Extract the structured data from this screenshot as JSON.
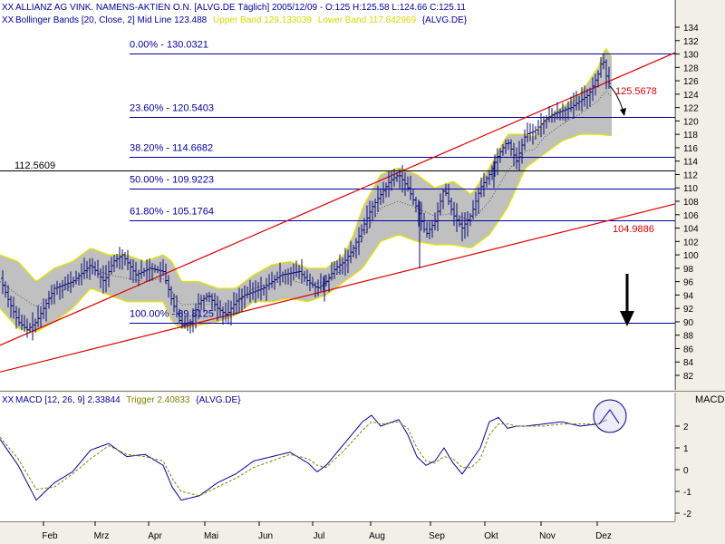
{
  "chart_data": [
    {
      "type": "candlestick",
      "title": "ALLIANZ AG VINK. NAMENS-AKTIEN O.N. [ALVG.DE  Täglich] 2005/12/09 - O:125 H:125.58 L:124.66 C:125.11",
      "indicator_label": "Bollinger Bands [20, Close, 2] Mid Line 123.488",
      "indicator_upper_label": "Upper Band 129.133039",
      "indicator_lower_label": "Lower Band 117.842969",
      "indicator_suffix": "{ALVG.DE}",
      "months": [
        "Feb",
        "Mrz",
        "Apr",
        "Mai",
        "Jun",
        "Jul",
        "Aug",
        "Sep",
        "Okt",
        "Nov",
        "Dez"
      ],
      "y_ticks": [
        82,
        84,
        86,
        88,
        90,
        92,
        94,
        96,
        98,
        100,
        102,
        104,
        106,
        108,
        110,
        112,
        114,
        116,
        118,
        120,
        122,
        124,
        126,
        128,
        130,
        132,
        134
      ],
      "ylim": [
        80.5,
        135.5
      ],
      "fib_levels": [
        {
          "label": "0.00% - 130.0321",
          "value": 130.0321
        },
        {
          "label": "23.60% - 120.5403",
          "value": 120.5403
        },
        {
          "label": "38.20% - 114.6682",
          "value": 114.6682
        },
        {
          "label": "50.00% - 109.9223",
          "value": 109.9223
        },
        {
          "label": "61.80% - 105.1764",
          "value": 105.1764
        },
        {
          "label": "100.00% - 89.8125",
          "value": 89.8125
        }
      ],
      "horizontal_line": {
        "label": "112.5609",
        "value": 112.5609
      },
      "channel_labels": [
        {
          "label": "125.5678",
          "value": 125.5678
        },
        {
          "label": "104.9886",
          "value": 104.9886
        }
      ],
      "price_keypoints": [
        [
          0,
          96.5
        ],
        [
          10,
          93
        ],
        [
          20,
          90
        ],
        [
          30,
          88.8
        ],
        [
          40,
          90
        ],
        [
          60,
          95
        ],
        [
          80,
          96
        ],
        [
          100,
          98.5
        ],
        [
          115,
          96
        ],
        [
          125,
          99
        ],
        [
          135,
          100
        ],
        [
          150,
          97
        ],
        [
          165,
          98
        ],
        [
          180,
          97.5
        ],
        [
          190,
          93
        ],
        [
          200,
          89.5
        ],
        [
          210,
          90
        ],
        [
          220,
          93
        ],
        [
          230,
          94
        ],
        [
          240,
          92
        ],
        [
          250,
          91
        ],
        [
          260,
          93
        ],
        [
          270,
          94
        ],
        [
          290,
          95
        ],
        [
          310,
          97
        ],
        [
          330,
          97.5
        ],
        [
          340,
          96
        ],
        [
          350,
          95
        ],
        [
          360,
          96
        ],
        [
          370,
          98
        ],
        [
          380,
          99
        ],
        [
          390,
          101
        ],
        [
          400,
          104
        ],
        [
          410,
          107
        ],
        [
          420,
          109
        ],
        [
          430,
          111
        ],
        [
          440,
          112
        ],
        [
          450,
          110
        ],
        [
          460,
          107
        ],
        [
          470,
          103
        ],
        [
          480,
          105
        ],
        [
          490,
          110
        ],
        [
          500,
          106
        ],
        [
          510,
          104
        ],
        [
          520,
          106
        ],
        [
          530,
          110
        ],
        [
          540,
          112
        ],
        [
          550,
          115
        ],
        [
          560,
          117
        ],
        [
          570,
          114
        ],
        [
          580,
          118
        ],
        [
          590,
          118.5
        ],
        [
          600,
          120
        ],
        [
          610,
          121
        ],
        [
          620,
          121.5
        ],
        [
          630,
          122
        ],
        [
          640,
          123
        ],
        [
          650,
          124
        ],
        [
          660,
          127
        ],
        [
          665,
          129.5
        ],
        [
          670,
          126
        ],
        [
          675,
          125
        ]
      ],
      "upper_band_keypoints": [
        [
          0,
          100
        ],
        [
          20,
          99
        ],
        [
          40,
          96
        ],
        [
          60,
          98
        ],
        [
          80,
          99
        ],
        [
          100,
          101
        ],
        [
          120,
          100
        ],
        [
          140,
          100
        ],
        [
          160,
          99
        ],
        [
          180,
          100
        ],
        [
          190,
          99
        ],
        [
          200,
          96
        ],
        [
          220,
          96
        ],
        [
          240,
          95
        ],
        [
          260,
          95
        ],
        [
          280,
          97
        ],
        [
          300,
          98.5
        ],
        [
          320,
          99
        ],
        [
          340,
          98
        ],
        [
          360,
          98
        ],
        [
          380,
          100
        ],
        [
          390,
          103
        ],
        [
          400,
          107
        ],
        [
          420,
          112
        ],
        [
          440,
          113
        ],
        [
          460,
          112
        ],
        [
          480,
          110
        ],
        [
          500,
          111
        ],
        [
          510,
          110
        ],
        [
          520,
          109
        ],
        [
          540,
          113
        ],
        [
          560,
          118
        ],
        [
          580,
          118
        ],
        [
          590,
          117.5
        ],
        [
          600,
          120
        ],
        [
          620,
          122
        ],
        [
          640,
          124
        ],
        [
          660,
          128
        ],
        [
          668,
          131
        ],
        [
          675,
          129.5
        ]
      ],
      "lower_band_keypoints": [
        [
          0,
          92
        ],
        [
          20,
          89
        ],
        [
          40,
          88.5
        ],
        [
          60,
          90
        ],
        [
          80,
          92
        ],
        [
          100,
          95
        ],
        [
          120,
          94
        ],
        [
          140,
          93
        ],
        [
          160,
          93
        ],
        [
          180,
          93
        ],
        [
          190,
          90
        ],
        [
          200,
          89
        ],
        [
          220,
          89.5
        ],
        [
          240,
          90
        ],
        [
          260,
          91
        ],
        [
          280,
          93
        ],
        [
          300,
          93
        ],
        [
          320,
          93.5
        ],
        [
          340,
          93
        ],
        [
          360,
          94
        ],
        [
          380,
          96
        ],
        [
          400,
          98
        ],
        [
          420,
          102
        ],
        [
          440,
          103
        ],
        [
          460,
          102
        ],
        [
          480,
          101.5
        ],
        [
          500,
          101.5
        ],
        [
          520,
          101
        ],
        [
          540,
          103
        ],
        [
          560,
          107
        ],
        [
          580,
          113
        ],
        [
          600,
          115
        ],
        [
          620,
          117
        ],
        [
          640,
          118
        ],
        [
          660,
          118
        ],
        [
          675,
          117.8
        ]
      ],
      "trendlines": [
        {
          "x1": 0,
          "y1": 86.5,
          "x2": 745,
          "y2": 130.2,
          "color": "#dd0000"
        },
        {
          "x1": 0,
          "y1": 82.5,
          "x2": 745,
          "y2": 107.6,
          "color": "#dd0000"
        }
      ],
      "colors": {
        "candle": "#0a0a7a",
        "band_fill": "#c0c0c0",
        "band_edge": "#e6e600",
        "fib": "#0000a0",
        "trend": "#dd0000",
        "midline": "#404040"
      }
    },
    {
      "type": "line",
      "title": "MACD [12, 26, 9] 2.33844",
      "trigger_label": "Trigger 2.40833",
      "suffix": "{ALVG.DE}",
      "axis_title": "MACD",
      "y_ticks": [
        -2,
        -1,
        0,
        1,
        2
      ],
      "ylim": [
        -2.3,
        3.4
      ],
      "series": [
        {
          "name": "MACD",
          "color": "#0000a0",
          "keypoints": [
            [
              0,
              1.4
            ],
            [
              20,
              0.2
            ],
            [
              40,
              -1.4
            ],
            [
              60,
              -0.6
            ],
            [
              80,
              -0.1
            ],
            [
              100,
              0.9
            ],
            [
              120,
              1.2
            ],
            [
              140,
              0.6
            ],
            [
              160,
              0.7
            ],
            [
              180,
              0.2
            ],
            [
              190,
              -0.8
            ],
            [
              200,
              -1.4
            ],
            [
              220,
              -1.2
            ],
            [
              240,
              -0.6
            ],
            [
              260,
              -0.2
            ],
            [
              280,
              0.4
            ],
            [
              300,
              0.6
            ],
            [
              320,
              0.8
            ],
            [
              340,
              0.3
            ],
            [
              350,
              -0.1
            ],
            [
              360,
              0.2
            ],
            [
              380,
              1.2
            ],
            [
              400,
              2.2
            ],
            [
              410,
              2.5
            ],
            [
              420,
              2.0
            ],
            [
              440,
              2.3
            ],
            [
              450,
              1.6
            ],
            [
              460,
              0.6
            ],
            [
              470,
              0.2
            ],
            [
              480,
              0.4
            ],
            [
              490,
              1.0
            ],
            [
              500,
              0.3
            ],
            [
              510,
              -0.2
            ],
            [
              520,
              0.4
            ],
            [
              530,
              1.0
            ],
            [
              540,
              2.2
            ],
            [
              550,
              2.4
            ],
            [
              560,
              1.9
            ],
            [
              570,
              2.0
            ],
            [
              580,
              2.0
            ],
            [
              600,
              2.1
            ],
            [
              620,
              2.2
            ],
            [
              640,
              2.0
            ],
            [
              660,
              2.1
            ],
            [
              670,
              2.3
            ]
          ]
        },
        {
          "name": "Trigger",
          "color": "#808000",
          "keypoints": [
            [
              0,
              1.5
            ],
            [
              20,
              0.5
            ],
            [
              40,
              -0.9
            ],
            [
              60,
              -0.8
            ],
            [
              80,
              -0.2
            ],
            [
              100,
              0.5
            ],
            [
              120,
              1.1
            ],
            [
              140,
              0.7
            ],
            [
              160,
              0.6
            ],
            [
              180,
              0.4
            ],
            [
              190,
              -0.4
            ],
            [
              200,
              -1.0
            ],
            [
              220,
              -1.2
            ],
            [
              240,
              -0.8
            ],
            [
              260,
              -0.4
            ],
            [
              280,
              0.1
            ],
            [
              300,
              0.4
            ],
            [
              320,
              0.7
            ],
            [
              340,
              0.5
            ],
            [
              350,
              0.2
            ],
            [
              360,
              0.1
            ],
            [
              380,
              0.9
            ],
            [
              400,
              1.8
            ],
            [
              410,
              2.2
            ],
            [
              420,
              2.1
            ],
            [
              440,
              2.2
            ],
            [
              450,
              1.9
            ],
            [
              460,
              1.0
            ],
            [
              470,
              0.4
            ],
            [
              480,
              0.3
            ],
            [
              490,
              0.6
            ],
            [
              500,
              0.5
            ],
            [
              510,
              0.1
            ],
            [
              520,
              0.1
            ],
            [
              530,
              0.5
            ],
            [
              540,
              1.6
            ],
            [
              550,
              2.1
            ],
            [
              560,
              2.1
            ],
            [
              570,
              2.0
            ],
            [
              580,
              2.0
            ],
            [
              600,
              2.0
            ],
            [
              620,
              2.1
            ],
            [
              640,
              2.1
            ],
            [
              660,
              2.1
            ],
            [
              670,
              2.3
            ]
          ]
        }
      ]
    }
  ]
}
